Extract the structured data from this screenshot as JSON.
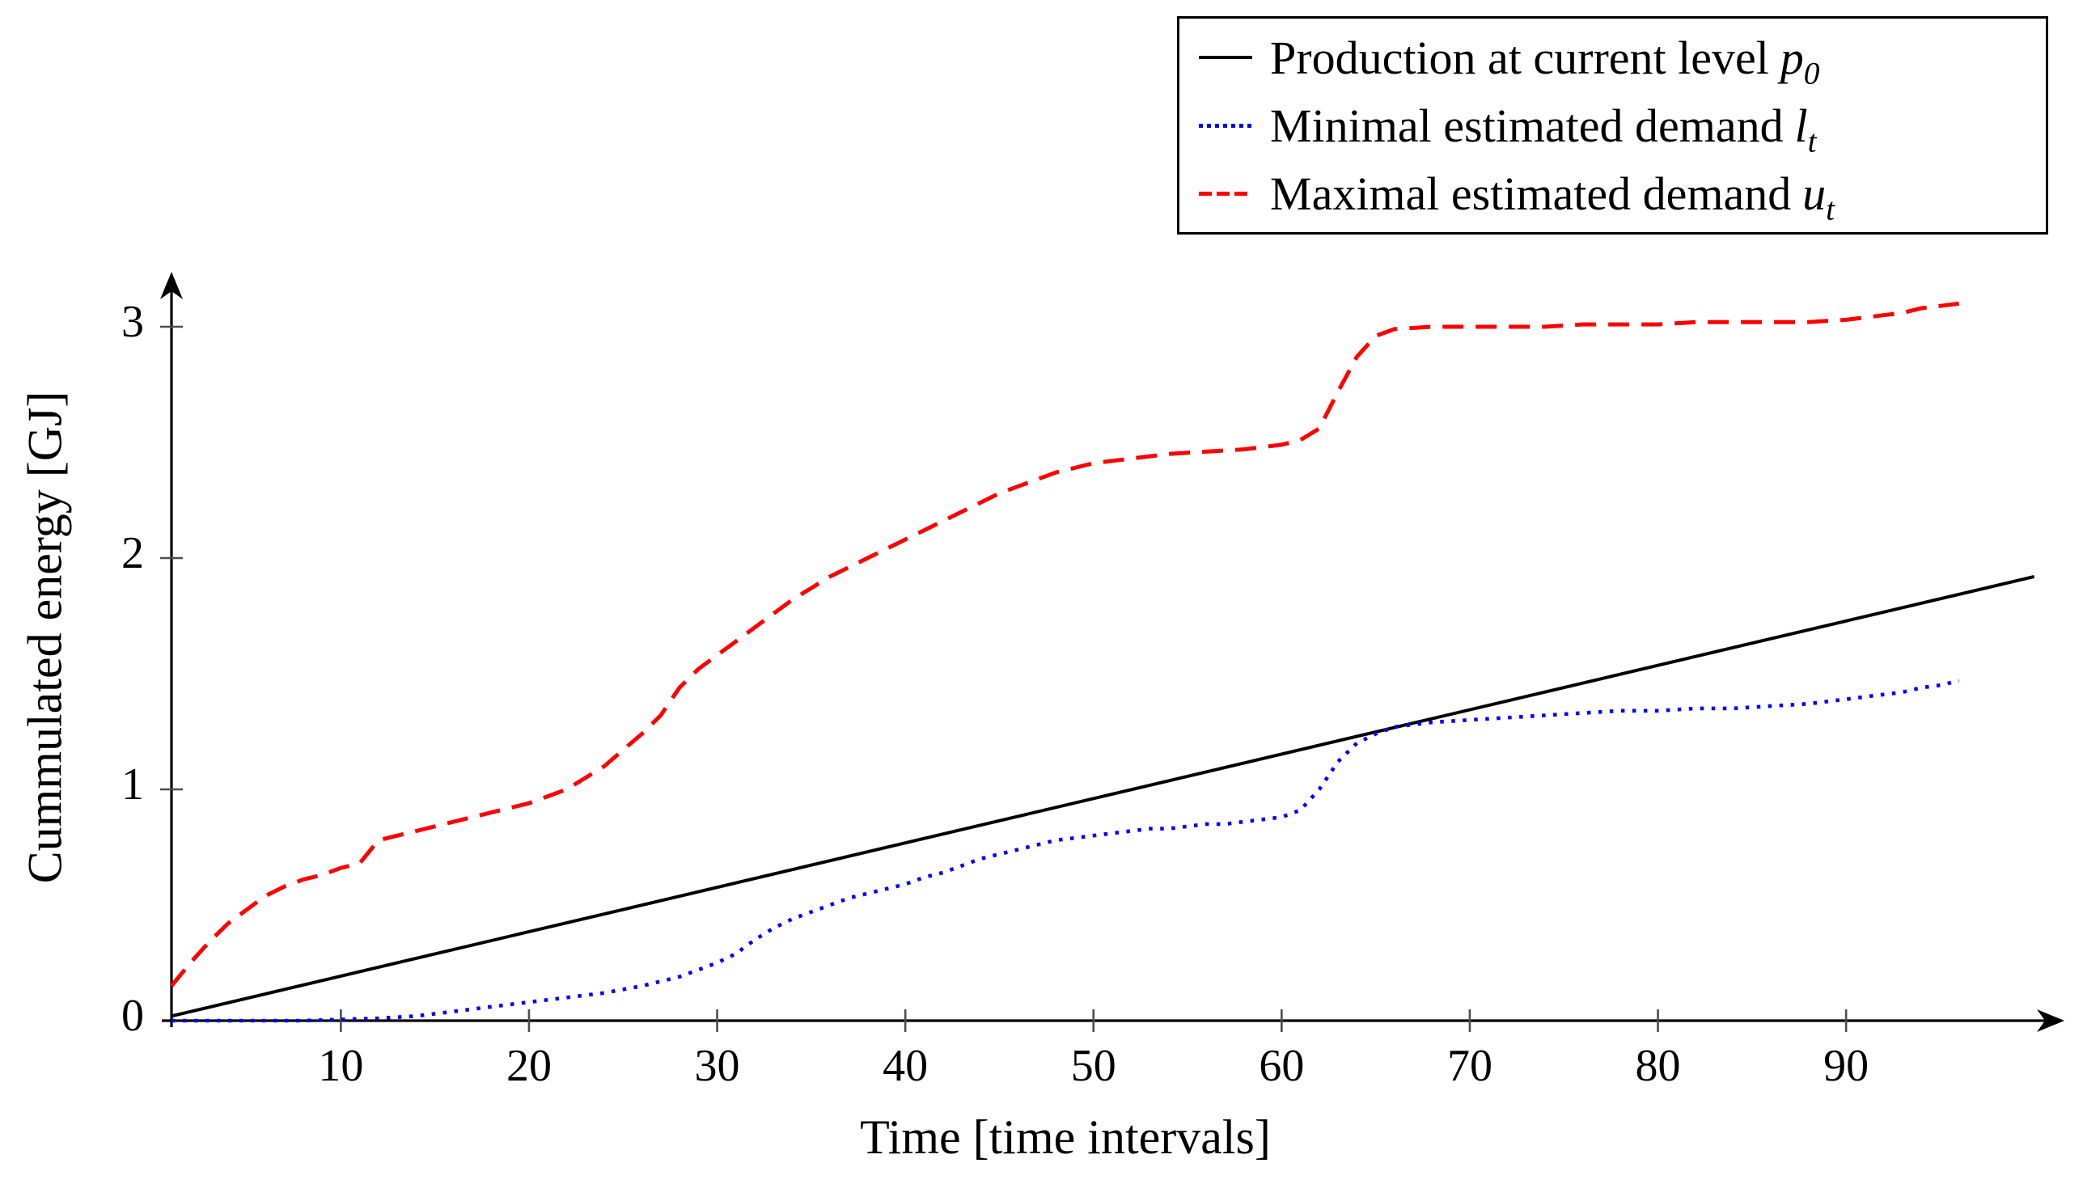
{
  "figure": {
    "x_axis_label": "Time [time intervals]",
    "y_axis_label": "Cummulated energy [GJ]"
  },
  "legend": {
    "items": [
      {
        "text": "Production at current level",
        "math": "p",
        "sub": "0"
      },
      {
        "text": "Minimal estimated demand",
        "math": "l",
        "sub": "t"
      },
      {
        "text": "Maximal estimated demand",
        "math": "u",
        "sub": "t"
      }
    ]
  },
  "chart_data": {
    "type": "line",
    "title": "",
    "xlabel": "Time [time intervals]",
    "ylabel": "Cummulated energy [GJ]",
    "xlim": [
      1,
      101
    ],
    "ylim": [
      0,
      3.2
    ],
    "x_ticks": [
      10,
      20,
      30,
      40,
      50,
      60,
      70,
      80,
      90
    ],
    "y_ticks": [
      0,
      1,
      2,
      3
    ],
    "grid": false,
    "legend_position": "top-right",
    "series": [
      {
        "name": "Production at current level p0",
        "style": "solid",
        "color": "#000000",
        "points": [
          [
            1,
            0.02
          ],
          [
            100,
            1.92
          ]
        ]
      },
      {
        "name": "Minimal estimated demand lt",
        "style": "dotted",
        "color": "#0000ff",
        "points": [
          [
            1,
            0
          ],
          [
            4,
            0
          ],
          [
            8,
            0
          ],
          [
            12,
            0.01
          ],
          [
            14,
            0.02
          ],
          [
            16,
            0.04
          ],
          [
            18,
            0.06
          ],
          [
            20,
            0.08
          ],
          [
            22,
            0.1
          ],
          [
            24,
            0.12
          ],
          [
            26,
            0.15
          ],
          [
            28,
            0.19
          ],
          [
            30,
            0.25
          ],
          [
            31,
            0.29
          ],
          [
            32,
            0.35
          ],
          [
            33,
            0.4
          ],
          [
            34,
            0.44
          ],
          [
            35,
            0.47
          ],
          [
            36,
            0.5
          ],
          [
            37,
            0.53
          ],
          [
            38,
            0.55
          ],
          [
            39,
            0.57
          ],
          [
            40,
            0.59
          ],
          [
            41,
            0.62
          ],
          [
            42,
            0.64
          ],
          [
            43,
            0.67
          ],
          [
            44,
            0.7
          ],
          [
            45,
            0.72
          ],
          [
            46,
            0.74
          ],
          [
            47,
            0.76
          ],
          [
            48,
            0.78
          ],
          [
            49,
            0.79
          ],
          [
            50,
            0.8
          ],
          [
            51,
            0.81
          ],
          [
            52,
            0.82
          ],
          [
            53,
            0.83
          ],
          [
            54,
            0.83
          ],
          [
            55,
            0.84
          ],
          [
            56,
            0.85
          ],
          [
            57,
            0.85
          ],
          [
            58,
            0.86
          ],
          [
            59,
            0.87
          ],
          [
            60,
            0.88
          ],
          [
            61,
            0.91
          ],
          [
            62,
            1.0
          ],
          [
            63,
            1.12
          ],
          [
            64,
            1.2
          ],
          [
            65,
            1.24
          ],
          [
            66,
            1.27
          ],
          [
            67,
            1.28
          ],
          [
            68,
            1.29
          ],
          [
            70,
            1.3
          ],
          [
            72,
            1.31
          ],
          [
            74,
            1.32
          ],
          [
            76,
            1.33
          ],
          [
            78,
            1.34
          ],
          [
            80,
            1.34
          ],
          [
            82,
            1.35
          ],
          [
            84,
            1.35
          ],
          [
            86,
            1.36
          ],
          [
            88,
            1.37
          ],
          [
            90,
            1.39
          ],
          [
            91,
            1.4
          ],
          [
            92,
            1.41
          ],
          [
            93,
            1.42
          ],
          [
            94,
            1.44
          ],
          [
            95,
            1.45
          ],
          [
            96,
            1.47
          ]
        ]
      },
      {
        "name": "Maximal estimated demand ut",
        "style": "dashed",
        "color": "#ff0000",
        "points": [
          [
            1,
            0.15
          ],
          [
            2,
            0.25
          ],
          [
            3,
            0.34
          ],
          [
            4,
            0.42
          ],
          [
            5,
            0.48
          ],
          [
            6,
            0.54
          ],
          [
            7,
            0.58
          ],
          [
            8,
            0.61
          ],
          [
            9,
            0.63
          ],
          [
            10,
            0.66
          ],
          [
            11,
            0.68
          ],
          [
            12,
            0.78
          ],
          [
            13,
            0.8
          ],
          [
            14,
            0.82
          ],
          [
            15,
            0.84
          ],
          [
            16,
            0.86
          ],
          [
            17,
            0.88
          ],
          [
            18,
            0.9
          ],
          [
            19,
            0.92
          ],
          [
            20,
            0.94
          ],
          [
            21,
            0.97
          ],
          [
            22,
            1.0
          ],
          [
            23,
            1.05
          ],
          [
            24,
            1.1
          ],
          [
            25,
            1.17
          ],
          [
            26,
            1.24
          ],
          [
            27,
            1.32
          ],
          [
            28,
            1.44
          ],
          [
            29,
            1.52
          ],
          [
            30,
            1.58
          ],
          [
            31,
            1.64
          ],
          [
            32,
            1.7
          ],
          [
            33,
            1.76
          ],
          [
            34,
            1.82
          ],
          [
            35,
            1.87
          ],
          [
            36,
            1.92
          ],
          [
            37,
            1.96
          ],
          [
            38,
            2.0
          ],
          [
            39,
            2.04
          ],
          [
            40,
            2.08
          ],
          [
            41,
            2.12
          ],
          [
            42,
            2.16
          ],
          [
            43,
            2.2
          ],
          [
            44,
            2.24
          ],
          [
            45,
            2.28
          ],
          [
            46,
            2.31
          ],
          [
            47,
            2.34
          ],
          [
            48,
            2.37
          ],
          [
            49,
            2.39
          ],
          [
            50,
            2.41
          ],
          [
            52,
            2.43
          ],
          [
            54,
            2.45
          ],
          [
            56,
            2.46
          ],
          [
            58,
            2.47
          ],
          [
            60,
            2.49
          ],
          [
            61,
            2.51
          ],
          [
            62,
            2.56
          ],
          [
            63,
            2.72
          ],
          [
            64,
            2.87
          ],
          [
            65,
            2.96
          ],
          [
            66,
            2.99
          ],
          [
            68,
            3.0
          ],
          [
            70,
            3.0
          ],
          [
            72,
            3.0
          ],
          [
            74,
            3.0
          ],
          [
            76,
            3.01
          ],
          [
            78,
            3.01
          ],
          [
            80,
            3.01
          ],
          [
            82,
            3.02
          ],
          [
            84,
            3.02
          ],
          [
            86,
            3.02
          ],
          [
            88,
            3.02
          ],
          [
            90,
            3.03
          ],
          [
            91,
            3.04
          ],
          [
            92,
            3.05
          ],
          [
            93,
            3.06
          ],
          [
            94,
            3.08
          ],
          [
            95,
            3.09
          ],
          [
            96,
            3.1
          ]
        ]
      }
    ]
  }
}
